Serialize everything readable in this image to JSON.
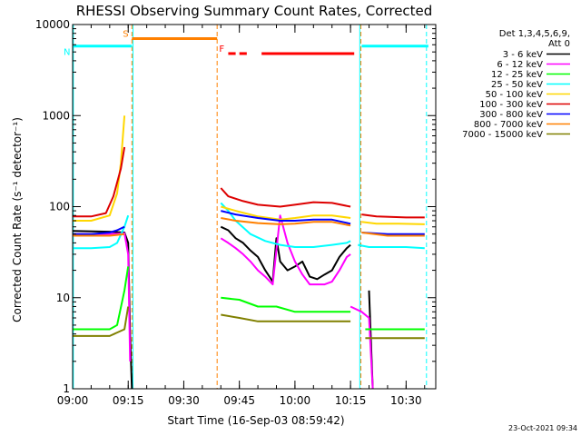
{
  "chart_data": {
    "type": "line",
    "title": "RHESSI Observing Summary Count Rates, Corrected",
    "xlabel": "Start Time (16-Sep-03 08:59:42)",
    "ylabel": "Corrected Count Rate (s⁻¹ detector⁻¹)",
    "y_scale": "log",
    "xlim": [
      "09:00",
      "10:38"
    ],
    "ylim": [
      1,
      10000
    ],
    "x_ticks": [
      "09:00",
      "09:15",
      "09:30",
      "09:45",
      "10:00",
      "10:15",
      "10:30"
    ],
    "y_ticks": [
      "1",
      "10",
      "100",
      "1000",
      "10000"
    ],
    "legend_position": "right",
    "legend_header": [
      "Det 1,3,4,5,6,9,",
      "Att 0"
    ],
    "footer_date": "23-Oct-2021 09:34",
    "series": [
      {
        "name": "3 - 6 keV",
        "color": "#000000",
        "segments": [
          [
            [
              "09:00",
              54
            ],
            [
              "09:10",
              53
            ],
            [
              "09:14",
              52
            ],
            [
              "09:15",
              40
            ],
            [
              "09:15.5",
              4
            ],
            [
              "09:16",
              1
            ]
          ],
          [
            [
              "09:40",
              60
            ],
            [
              "09:42",
              55
            ],
            [
              "09:44",
              45
            ],
            [
              "09:46",
              40
            ],
            [
              "09:48",
              33
            ],
            [
              "09:50",
              28
            ],
            [
              "09:52",
              20
            ],
            [
              "09:54",
              15
            ],
            [
              "09:55",
              45
            ],
            [
              "09:56",
              25
            ],
            [
              "09:58",
              20
            ],
            [
              "10:00",
              22
            ],
            [
              "10:02",
              25
            ],
            [
              "10:04",
              17
            ],
            [
              "10:06",
              16
            ],
            [
              "10:08",
              18
            ],
            [
              "10:10",
              20
            ],
            [
              "10:12",
              28
            ],
            [
              "10:14",
              35
            ],
            [
              "10:15",
              38
            ]
          ],
          [
            [
              "10:20",
              12
            ],
            [
              "10:21",
              1
            ]
          ]
        ]
      },
      {
        "name": "6 - 12 keV",
        "color": "#ff00ff",
        "segments": [
          [
            [
              "09:00",
              50
            ],
            [
              "09:10",
              50
            ],
            [
              "09:14",
              51
            ],
            [
              "09:15",
              30
            ],
            [
              "09:15.5",
              2
            ]
          ],
          [
            [
              "09:40",
              45
            ],
            [
              "09:42",
              40
            ],
            [
              "09:44",
              35
            ],
            [
              "09:46",
              30
            ],
            [
              "09:48",
              25
            ],
            [
              "09:50",
              20
            ],
            [
              "09:52",
              17
            ],
            [
              "09:54",
              14
            ],
            [
              "09:56",
              80
            ],
            [
              "09:58",
              40
            ],
            [
              "10:00",
              25
            ],
            [
              "10:02",
              18
            ],
            [
              "10:04",
              14
            ],
            [
              "10:06",
              14
            ],
            [
              "10:08",
              14
            ],
            [
              "10:10",
              15
            ],
            [
              "10:12",
              20
            ],
            [
              "10:14",
              28
            ],
            [
              "10:15",
              30
            ]
          ],
          [
            [
              "10:15",
              8
            ],
            [
              "10:18",
              7
            ],
            [
              "10:20",
              6
            ],
            [
              "10:21",
              1
            ]
          ]
        ]
      },
      {
        "name": "12 - 25 keV",
        "color": "#00ff00",
        "segments": [
          [
            [
              "09:00",
              4.5
            ],
            [
              "09:10",
              4.5
            ],
            [
              "09:12",
              5
            ],
            [
              "09:14",
              12
            ],
            [
              "09:15",
              22
            ]
          ],
          [
            [
              "09:40",
              10
            ],
            [
              "09:45",
              9.5
            ],
            [
              "09:50",
              8
            ],
            [
              "09:55",
              8
            ],
            [
              "10:00",
              7
            ],
            [
              "10:05",
              7
            ],
            [
              "10:10",
              7
            ],
            [
              "10:15",
              7
            ]
          ],
          [
            [
              "10:19",
              4.5
            ],
            [
              "10:25",
              4.5
            ],
            [
              "10:30",
              4.5
            ],
            [
              "10:35",
              4.5
            ]
          ]
        ]
      },
      {
        "name": "25 - 50 keV",
        "color": "#00ffff",
        "segments": [
          [
            [
              "09:00",
              35
            ],
            [
              "09:05",
              35
            ],
            [
              "09:10",
              36
            ],
            [
              "09:12",
              40
            ],
            [
              "09:14",
              60
            ],
            [
              "09:15",
              80
            ]
          ],
          [
            [
              "09:40",
              110
            ],
            [
              "09:42",
              90
            ],
            [
              "09:44",
              70
            ],
            [
              "09:48",
              50
            ],
            [
              "09:52",
              42
            ],
            [
              "09:56",
              38
            ],
            [
              "10:00",
              36
            ],
            [
              "10:05",
              36
            ],
            [
              "10:10",
              38
            ],
            [
              "10:14",
              40
            ],
            [
              "10:15",
              42
            ]
          ],
          [
            [
              "10:17",
              38
            ],
            [
              "10:20",
              36
            ],
            [
              "10:25",
              36
            ],
            [
              "10:30",
              36
            ],
            [
              "10:35",
              35
            ]
          ]
        ]
      },
      {
        "name": "50 - 100 keV",
        "color": "#ffd700",
        "segments": [
          [
            [
              "09:00",
              70
            ],
            [
              "09:05",
              70
            ],
            [
              "09:10",
              80
            ],
            [
              "09:12",
              140
            ],
            [
              "09:13",
              300
            ],
            [
              "09:14",
              1000
            ]
          ],
          [
            [
              "09:40",
              100
            ],
            [
              "09:44",
              90
            ],
            [
              "09:50",
              78
            ],
            [
              "09:56",
              72
            ],
            [
              "10:00",
              75
            ],
            [
              "10:05",
              80
            ],
            [
              "10:10",
              80
            ],
            [
              "10:15",
              75
            ]
          ],
          [
            [
              "10:18",
              68
            ],
            [
              "10:22",
              65
            ],
            [
              "10:28",
              65
            ],
            [
              "10:35",
              64
            ]
          ]
        ]
      },
      {
        "name": "100 - 300 keV",
        "color": "#dd0000",
        "segments": [
          [
            [
              "09:00",
              78
            ],
            [
              "09:05",
              78
            ],
            [
              "09:09",
              85
            ],
            [
              "09:11",
              130
            ],
            [
              "09:13",
              260
            ],
            [
              "09:14",
              450
            ]
          ],
          [
            [
              "09:40",
              160
            ],
            [
              "09:42",
              130
            ],
            [
              "09:46",
              115
            ],
            [
              "09:50",
              105
            ],
            [
              "09:56",
              100
            ],
            [
              "10:00",
              105
            ],
            [
              "10:05",
              112
            ],
            [
              "10:10",
              110
            ],
            [
              "10:15",
              100
            ]
          ],
          [
            [
              "10:18",
              82
            ],
            [
              "10:22",
              78
            ],
            [
              "10:30",
              76
            ],
            [
              "10:35",
              76
            ]
          ]
        ]
      },
      {
        "name": "300 - 800 keV",
        "color": "#0000ff",
        "segments": [
          [
            [
              "09:00",
              50
            ],
            [
              "09:05",
              50
            ],
            [
              "09:10",
              52
            ],
            [
              "09:12",
              55
            ],
            [
              "09:14",
              60
            ]
          ],
          [
            [
              "09:40",
              90
            ],
            [
              "09:44",
              82
            ],
            [
              "09:50",
              75
            ],
            [
              "09:56",
              70
            ],
            [
              "10:00",
              70
            ],
            [
              "10:05",
              72
            ],
            [
              "10:10",
              72
            ],
            [
              "10:15",
              65
            ]
          ],
          [
            [
              "10:18",
              52
            ],
            [
              "10:25",
              50
            ],
            [
              "10:30",
              50
            ],
            [
              "10:35",
              50
            ]
          ]
        ]
      },
      {
        "name": "800 - 7000 keV",
        "color": "#ff8000",
        "segments": [
          [
            [
              "09:00",
              48
            ],
            [
              "09:05",
              48
            ],
            [
              "09:10",
              48
            ],
            [
              "09:14",
              50
            ]
          ],
          [
            [
              "09:40",
              75
            ],
            [
              "09:44",
              70
            ],
            [
              "09:50",
              66
            ],
            [
              "09:56",
              64
            ],
            [
              "10:00",
              65
            ],
            [
              "10:05",
              68
            ],
            [
              "10:10",
              68
            ],
            [
              "10:15",
              62
            ]
          ],
          [
            [
              "10:18",
              52
            ],
            [
              "10:25",
              48
            ],
            [
              "10:30",
              48
            ],
            [
              "10:35",
              48
            ]
          ]
        ]
      },
      {
        "name": "7000 - 15000 keV",
        "color": "#808000",
        "segments": [
          [
            [
              "09:00",
              3.8
            ],
            [
              "09:05",
              3.8
            ],
            [
              "09:10",
              3.8
            ],
            [
              "09:14",
              4.5
            ],
            [
              "09:15",
              8
            ]
          ],
          [
            [
              "09:40",
              6.5
            ],
            [
              "09:45",
              6
            ],
            [
              "09:50",
              5.5
            ],
            [
              "09:55",
              5.5
            ],
            [
              "10:00",
              5.5
            ],
            [
              "10:05",
              5.5
            ],
            [
              "10:10",
              5.5
            ],
            [
              "10:15",
              5.5
            ]
          ],
          [
            [
              "10:19",
              3.6
            ],
            [
              "10:25",
              3.6
            ],
            [
              "10:30",
              3.6
            ],
            [
              "10:35",
              3.6
            ]
          ]
        ]
      }
    ],
    "state_bars": [
      {
        "label": "S",
        "color": "#ff8000",
        "from": "09:16",
        "to": "09:39",
        "y": 7000
      },
      {
        "label": "N",
        "color": "#00ffff",
        "from": "09:00",
        "to": "09:16",
        "y": 5800
      },
      {
        "label": "",
        "color": "#00ffff",
        "from": "10:18",
        "to": "10:36",
        "y": 5800
      },
      {
        "label": "F",
        "color": "#ff0000",
        "from": "09:42",
        "to": "09:44",
        "y": 4800
      },
      {
        "label": "",
        "color": "#ff0000",
        "from": "09:45",
        "to": "09:47",
        "y": 4800
      },
      {
        "label": "",
        "color": "#ff0000",
        "from": "09:51",
        "to": "10:16",
        "y": 4800
      }
    ],
    "markers": [
      {
        "time": "09:16",
        "color": "#ff8000",
        "style": "dashed"
      },
      {
        "time": "09:39",
        "color": "#ff8000",
        "style": "dashed"
      },
      {
        "time": "09:16.3",
        "color": "#00ffff",
        "style": "solid"
      },
      {
        "time": "10:17.5",
        "color": "#00ffff",
        "style": "solid"
      },
      {
        "time": "10:17.8",
        "color": "#ff8000",
        "style": "dashed"
      },
      {
        "time": "09:00.2",
        "color": "#00ffff",
        "style": "solid"
      },
      {
        "time": "10:35.5",
        "color": "#00ffff",
        "style": "dashed"
      }
    ]
  }
}
